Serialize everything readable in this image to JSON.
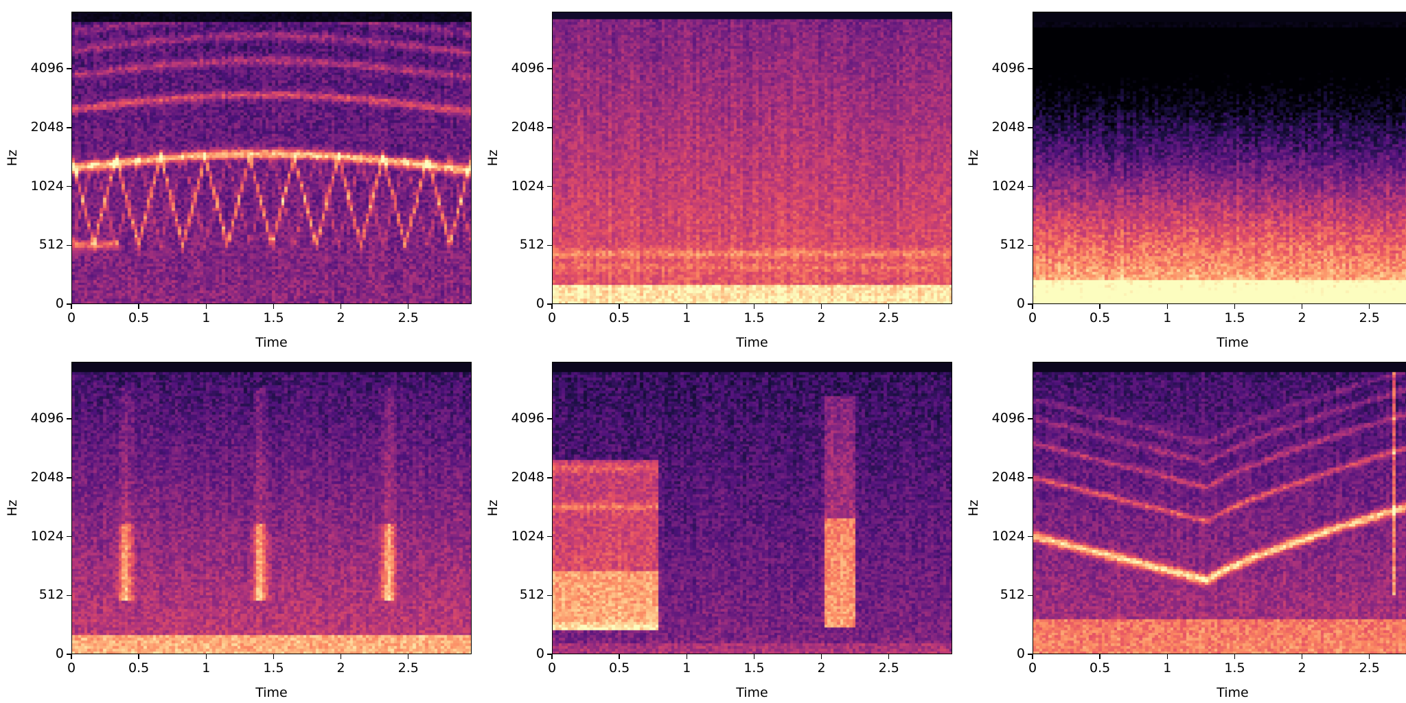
{
  "chart_data": [
    {
      "type": "heatmap",
      "xlabel": "Time",
      "ylabel": "Hz",
      "xticks": [
        "0",
        "0.5",
        "1",
        "1.5",
        "2",
        "2.5"
      ],
      "yticks": [
        "0",
        "512",
        "1024",
        "2048",
        "4096"
      ],
      "xlim": [
        0,
        2.97
      ],
      "ylim": [
        0,
        8000
      ],
      "y_scale": "mel",
      "colormap": "magma"
    },
    {
      "type": "heatmap",
      "xlabel": "Time",
      "ylabel": "Hz",
      "xticks": [
        "0",
        "0.5",
        "1",
        "1.5",
        "2",
        "2.5"
      ],
      "yticks": [
        "0",
        "512",
        "1024",
        "2048",
        "4096"
      ],
      "xlim": [
        0,
        2.97
      ],
      "ylim": [
        0,
        8000
      ],
      "y_scale": "mel",
      "colormap": "magma"
    },
    {
      "type": "heatmap",
      "xlabel": "Time",
      "ylabel": "Hz",
      "xticks": [
        "0",
        "0.5",
        "1",
        "1.5",
        "2",
        "2.5"
      ],
      "yticks": [
        "0",
        "512",
        "1024",
        "2048",
        "4096"
      ],
      "xlim": [
        0,
        2.97
      ],
      "ylim": [
        0,
        8000
      ],
      "y_scale": "mel",
      "colormap": "magma"
    },
    {
      "type": "heatmap",
      "xlabel": "Time",
      "ylabel": "Hz",
      "xticks": [
        "0",
        "0.5",
        "1",
        "1.5",
        "2",
        "2.5"
      ],
      "yticks": [
        "0",
        "512",
        "1024",
        "2048",
        "4096"
      ],
      "xlim": [
        0,
        2.97
      ],
      "ylim": [
        0,
        8000
      ],
      "y_scale": "mel",
      "colormap": "magma"
    },
    {
      "type": "heatmap",
      "xlabel": "Time",
      "ylabel": "Hz",
      "xticks": [
        "0",
        "0.5",
        "1",
        "1.5",
        "2",
        "2.5"
      ],
      "yticks": [
        "0",
        "512",
        "1024",
        "2048",
        "4096"
      ],
      "xlim": [
        0,
        2.97
      ],
      "ylim": [
        0,
        8000
      ],
      "y_scale": "mel",
      "colormap": "magma"
    },
    {
      "type": "heatmap",
      "xlabel": "Time",
      "ylabel": "Hz",
      "xticks": [
        "0",
        "0.5",
        "1",
        "1.5",
        "2",
        "2.5"
      ],
      "yticks": [
        "0",
        "512",
        "1024",
        "2048",
        "4096"
      ],
      "xlim": [
        0,
        2.97
      ],
      "ylim": [
        0,
        8000
      ],
      "y_scale": "mel",
      "colormap": "magma"
    }
  ]
}
